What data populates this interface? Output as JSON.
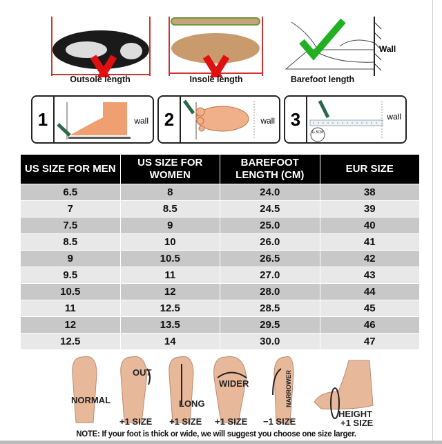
{
  "measure": {
    "panels": [
      {
        "caption": "Outsole length",
        "mark": "x-icon"
      },
      {
        "caption": "Insole length",
        "mark": "x-icon"
      },
      {
        "caption": "Barefoot length",
        "mark": "check-icon",
        "wall_label": "Wall"
      }
    ],
    "steps": [
      {
        "number": "1",
        "wall_label": "wall"
      },
      {
        "number": "2",
        "wall_label": "wall"
      },
      {
        "number": "3",
        "wall_label": "wall",
        "ruler_label": "11.5CM"
      }
    ]
  },
  "size_table": {
    "headers": [
      "US SIZE FOR MEN",
      "US SIZE FOR WOMEN",
      "BAREFOOT LENGTH (CM)",
      "EUR SIZE"
    ],
    "rows": [
      [
        "6.5",
        "8",
        "24.0",
        "38"
      ],
      [
        "7",
        "8.5",
        "24.5",
        "39"
      ],
      [
        "7.5",
        "9",
        "25.0",
        "40"
      ],
      [
        "8.5",
        "10",
        "26.0",
        "41"
      ],
      [
        "9",
        "10.5",
        "26.5",
        "42"
      ],
      [
        "9.5",
        "11",
        "27.0",
        "43"
      ],
      [
        "10.5",
        "12",
        "28.0",
        "44"
      ],
      [
        "11",
        "12.5",
        "28.5",
        "45"
      ],
      [
        "12",
        "13.5",
        "29.5",
        "46"
      ],
      [
        "12.5",
        "14",
        "30.0",
        "47"
      ]
    ]
  },
  "foot_types": [
    {
      "label": "NORMAL",
      "size": ""
    },
    {
      "label": "OUT",
      "size": "+1 SIZE"
    },
    {
      "label": "LONG",
      "size": "+1 SIZE"
    },
    {
      "label": "WIDER",
      "size": "+1 SIZE"
    },
    {
      "label": "NARROWER",
      "size": "−1 SIZE"
    },
    {
      "label": "HEIGHT",
      "size": "+1 SIZE"
    }
  ],
  "note": "NOTE: If your foot is thick or wide, we will suggest you choose one size larger.",
  "colors": {
    "header_bg": "#000000",
    "row_dark": "#c8c8c8",
    "row_light": "#e8e8e8",
    "x_mark": "#e01010",
    "check_mark": "#22b022",
    "skin": "#f0b08a"
  }
}
